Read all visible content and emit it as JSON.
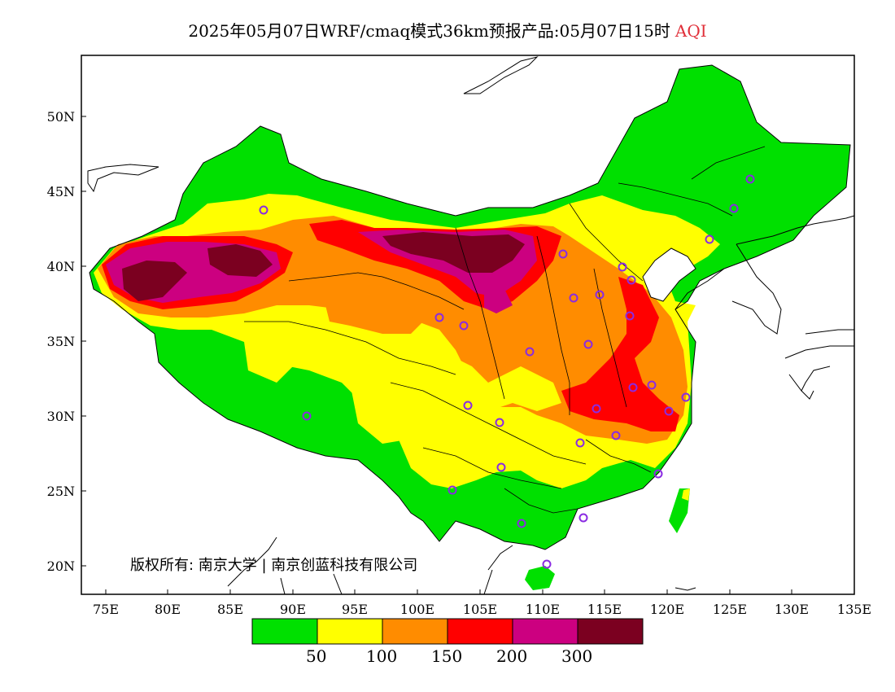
{
  "title": {
    "text": "2025年05月07日WRF/cmaq模式36km预报产品:05月07日15时",
    "highlight": "AQI",
    "highlight_color": "#e0303a"
  },
  "axes": {
    "x_ticks": [
      "75E",
      "80E",
      "85E",
      "90E",
      "95E",
      "100E",
      "105E",
      "110E",
      "115E",
      "120E",
      "125E",
      "130E",
      "135E"
    ],
    "y_ticks": [
      "50N",
      "45N",
      "40N",
      "35N",
      "30N",
      "25N",
      "20N"
    ]
  },
  "copyright": "版权所有: 南京大学 | 南京创蓝科技有限公司",
  "legend": {
    "colors": [
      "#00e000",
      "#ffff00",
      "#ff8c00",
      "#ff0000",
      "#cc0080",
      "#7b0020"
    ],
    "labels": [
      "50",
      "100",
      "150",
      "200",
      "300"
    ]
  }
}
